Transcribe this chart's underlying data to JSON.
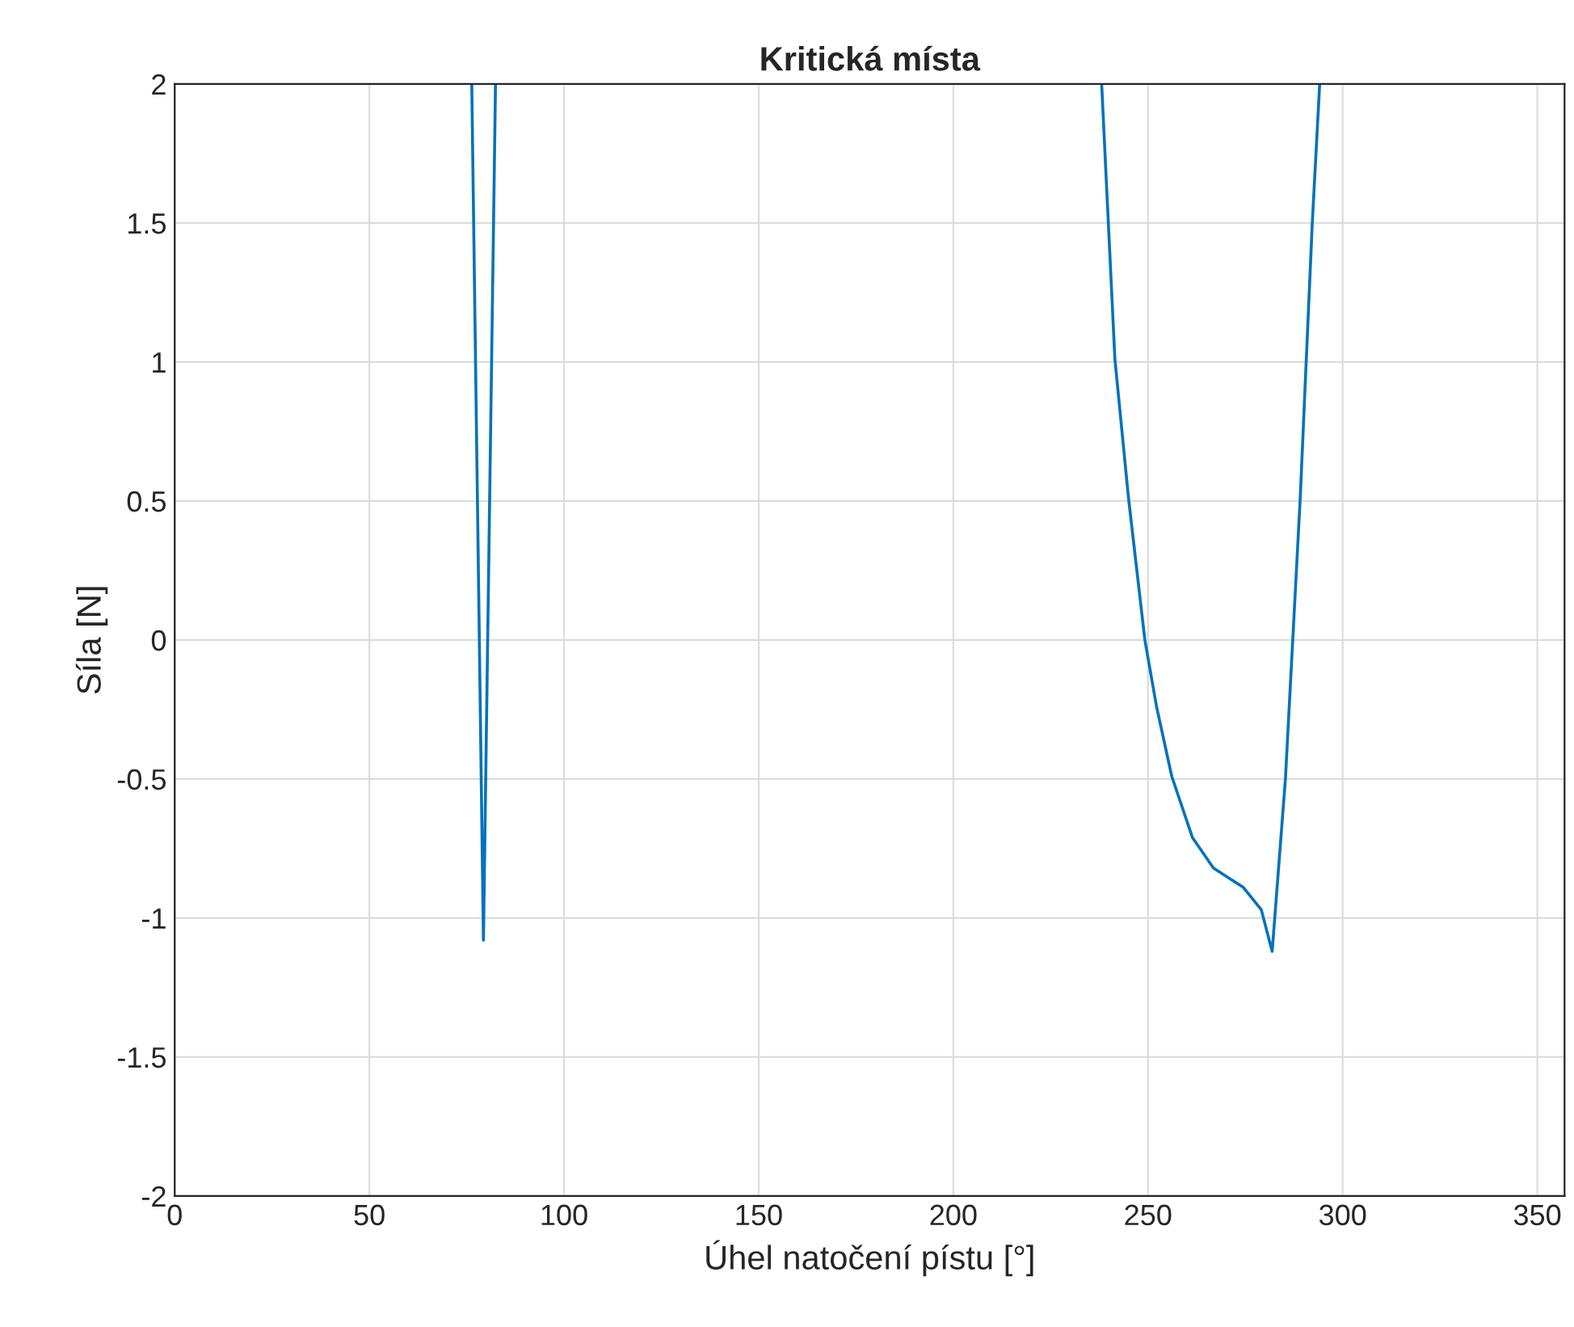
{
  "chart_data": {
    "type": "line",
    "title": "Kritická místa",
    "xlabel": "Úhel natočení pístu [°]",
    "ylabel": "Síla [N]",
    "x": [
      76.3,
      79.3,
      82.4,
      160,
      238.1,
      241.5,
      245.0,
      249.2,
      252.2,
      256.1,
      261.4,
      266.8,
      274.5,
      279.1,
      281.9,
      285.3,
      289.1,
      292.2,
      294.1
    ],
    "series": [
      {
        "color": "#0072bd",
        "values": [
          2,
          -1.08,
          2,
          null,
          2,
          1.01,
          0.51,
          0.0,
          -0.24,
          -0.49,
          -0.71,
          -0.82,
          -0.89,
          -0.97,
          -1.12,
          -0.5,
          0.51,
          1.5,
          2
        ]
      }
    ],
    "xlim": [
      0,
      357
    ],
    "ylim": [
      -2,
      2
    ],
    "xticks": [
      0,
      50,
      100,
      150,
      200,
      250,
      300,
      350
    ],
    "yticks": [
      -2,
      -1.5,
      -1,
      -0.5,
      0,
      0.5,
      1,
      1.5,
      2
    ],
    "grid": true,
    "marker": "none",
    "line_style": "solid",
    "legend": false
  }
}
